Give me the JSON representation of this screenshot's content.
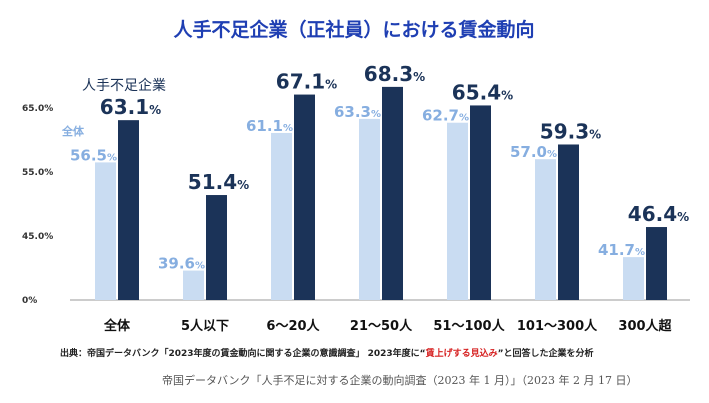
{
  "chart_data": {
    "type": "bar",
    "title": "人手不足企業（正社員）における賃金動向",
    "categories": [
      "全体",
      "5人以下",
      "6～20人",
      "21～50人",
      "51～100人",
      "101～300人",
      "300人超"
    ],
    "series": [
      {
        "name": "全体",
        "color": "#c9dcf2",
        "values": [
          56.5,
          39.6,
          61.1,
          63.3,
          62.7,
          57.0,
          41.7
        ],
        "labels": [
          "56.5",
          "39.6",
          "61.1",
          "63.3",
          "62.7",
          "57.0",
          "41.7"
        ]
      },
      {
        "name": "人手不足企業",
        "color": "#1b3358",
        "values": [
          63.1,
          51.4,
          67.1,
          68.3,
          65.4,
          59.3,
          46.4
        ],
        "labels": [
          "63.1",
          "51.4",
          "67.1",
          "68.3",
          "65.4",
          "59.3",
          "46.4"
        ]
      }
    ],
    "unit": "%",
    "yticks": [
      "0%",
      "45.0%",
      "55.0%",
      "65.0%"
    ],
    "ylim": [
      35,
      75
    ],
    "axis_break": true,
    "xlabel": "",
    "ylabel": ""
  },
  "note": {
    "prefix": "出典：帝国データバンク「2023年度の賃金動向に関する企業の意識調査」 2023年度に“",
    "highlight": "賃上げする見込み",
    "suffix": "”と回答した企業を分析"
  },
  "source": "帝国データバンク「人手不足に対する企業の動向調査（2023 年 1 月）」（2023 年 2 月 17 日）"
}
